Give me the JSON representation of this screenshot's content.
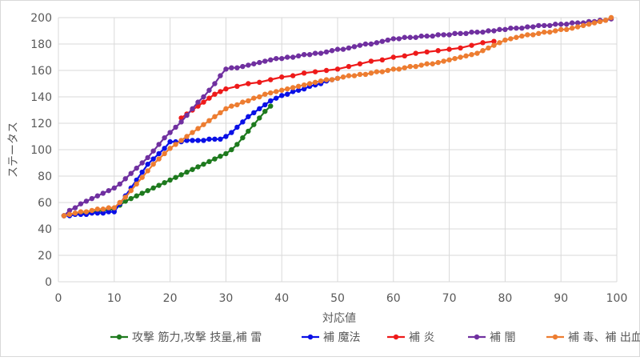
{
  "chart_data": {
    "type": "line",
    "title": "",
    "xlabel": "対応値",
    "ylabel": "ステータス",
    "xlim": [
      0,
      100
    ],
    "ylim": [
      0,
      200
    ],
    "xticks": [
      0,
      10,
      20,
      30,
      40,
      50,
      60,
      70,
      80,
      90,
      100
    ],
    "yticks": [
      0,
      20,
      40,
      60,
      80,
      100,
      120,
      140,
      160,
      180,
      200
    ],
    "grid": true,
    "legend_position": "bottom",
    "series": [
      {
        "name": "攻撃 筋力,攻撃 技量,補 雷",
        "color": "#1e7a1e",
        "x": [
          1,
          10,
          11,
          12,
          13,
          14,
          15,
          16,
          17,
          18,
          19,
          20,
          21,
          22,
          23,
          24,
          25,
          26,
          27,
          28,
          29,
          30,
          31,
          32,
          33,
          34,
          35,
          36,
          37,
          38
        ],
        "y": [
          50,
          55,
          58,
          61,
          63,
          65,
          67,
          69,
          71,
          73,
          75,
          77,
          79,
          81,
          83,
          85,
          87,
          89,
          91,
          93,
          95,
          97,
          100,
          104,
          109,
          114,
          119,
          124,
          129,
          133
        ]
      },
      {
        "name": "補 魔法",
        "color": "#0a10e6",
        "x": [
          1,
          2,
          3,
          4,
          5,
          6,
          7,
          8,
          9,
          10,
          11,
          12,
          13,
          14,
          15,
          16,
          17,
          18,
          19,
          20,
          21,
          22,
          23,
          24,
          25,
          26,
          27,
          28,
          29,
          30,
          31,
          32,
          33,
          34,
          35,
          36,
          37,
          38,
          39,
          40,
          41,
          42,
          43,
          44,
          45,
          46,
          47,
          48,
          49,
          50
        ],
        "y": [
          50,
          50,
          51,
          51,
          51,
          52,
          52,
          52,
          53,
          53,
          59,
          65,
          71,
          77,
          83,
          89,
          93,
          97,
          101,
          106,
          106,
          106,
          107,
          107,
          107,
          107,
          108,
          108,
          108,
          110,
          113,
          117,
          121,
          125,
          128,
          131,
          134,
          137,
          139,
          141,
          142,
          144,
          145,
          146,
          148,
          149,
          150,
          152,
          153,
          154
        ]
      },
      {
        "name": "補 炎",
        "color": "#ee1a1a",
        "x": [
          22,
          23,
          24,
          25,
          26,
          27,
          28,
          29,
          30,
          32,
          34,
          36,
          38,
          40,
          42,
          44,
          46,
          48,
          50,
          52,
          54,
          56,
          58,
          60,
          62,
          64,
          66,
          68,
          70,
          72,
          74,
          76,
          78
        ],
        "y": [
          124,
          127,
          130,
          133,
          136,
          139,
          142,
          144,
          146,
          148,
          150,
          151,
          153,
          155,
          156,
          158,
          159,
          160,
          161,
          163,
          165,
          167,
          168,
          170,
          171,
          173,
          174,
          175,
          176,
          177,
          179,
          181,
          182
        ]
      },
      {
        "name": "補 闇",
        "color": "#7030a0",
        "x": [
          1,
          2,
          3,
          4,
          5,
          6,
          7,
          8,
          9,
          10,
          11,
          12,
          13,
          14,
          15,
          16,
          17,
          18,
          19,
          20,
          21,
          22,
          23,
          24,
          25,
          26,
          27,
          28,
          29,
          30,
          31,
          32,
          33,
          34,
          35,
          36,
          37,
          38,
          39,
          40,
          41,
          42,
          43,
          44,
          45,
          46,
          47,
          48,
          49,
          50,
          51,
          52,
          53,
          54,
          55,
          56,
          57,
          58,
          59,
          60,
          61,
          62,
          63,
          64,
          65,
          66,
          67,
          68,
          69,
          70,
          71,
          72,
          73,
          74,
          75,
          76,
          77,
          78,
          79,
          80,
          81,
          82,
          83,
          84,
          85,
          86,
          87,
          88,
          89,
          90,
          91,
          92,
          93,
          94,
          95,
          96,
          97,
          98,
          99
        ],
        "y": [
          50,
          54,
          56,
          59,
          61,
          63,
          65,
          67,
          69,
          71,
          74,
          78,
          82,
          86,
          90,
          94,
          99,
          104,
          109,
          113,
          117,
          121,
          126,
          131,
          136,
          140,
          145,
          150,
          156,
          161,
          162,
          162,
          163,
          164,
          165,
          166,
          167,
          168,
          169,
          169,
          170,
          170,
          171,
          172,
          172,
          173,
          173,
          174,
          175,
          176,
          176,
          177,
          178,
          179,
          180,
          180,
          181,
          182,
          183,
          184,
          184,
          185,
          185,
          185,
          186,
          186,
          186,
          187,
          187,
          187,
          188,
          188,
          188,
          189,
          189,
          189,
          190,
          190,
          191,
          191,
          192,
          192,
          192,
          193,
          193,
          194,
          194,
          194,
          195,
          195,
          195,
          196,
          196,
          196,
          197,
          197,
          198,
          198,
          199
        ]
      },
      {
        "name": "補 毒、補 出血",
        "color": "#ed7d31",
        "x": [
          1,
          2,
          3,
          4,
          5,
          6,
          7,
          8,
          9,
          10,
          11,
          12,
          13,
          14,
          15,
          16,
          17,
          18,
          19,
          20,
          21,
          22,
          23,
          24,
          25,
          26,
          27,
          28,
          29,
          30,
          31,
          32,
          33,
          34,
          35,
          36,
          37,
          38,
          39,
          40,
          41,
          42,
          43,
          44,
          45,
          46,
          47,
          48,
          49,
          50,
          51,
          52,
          53,
          54,
          55,
          56,
          57,
          58,
          59,
          60,
          61,
          62,
          63,
          64,
          65,
          66,
          67,
          68,
          69,
          70,
          71,
          72,
          73,
          74,
          75,
          76,
          77,
          78,
          79,
          80,
          81,
          82,
          83,
          84,
          85,
          86,
          87,
          88,
          89,
          90,
          91,
          92,
          93,
          94,
          95,
          96,
          97,
          98,
          99
        ],
        "y": [
          50,
          51,
          52,
          53,
          53,
          54,
          55,
          55,
          56,
          56,
          60,
          64,
          69,
          74,
          79,
          84,
          89,
          93,
          97,
          101,
          104,
          107,
          110,
          113,
          116,
          119,
          122,
          125,
          128,
          131,
          133,
          134,
          136,
          137,
          139,
          140,
          142,
          143,
          144,
          145,
          146,
          147,
          148,
          149,
          150,
          151,
          152,
          153,
          153,
          154,
          155,
          156,
          156,
          157,
          157,
          158,
          159,
          159,
          160,
          161,
          161,
          162,
          163,
          163,
          164,
          165,
          165,
          166,
          167,
          168,
          169,
          170,
          171,
          172,
          173,
          175,
          177,
          179,
          181,
          183,
          184,
          185,
          186,
          187,
          187,
          188,
          189,
          189,
          190,
          191,
          191,
          192,
          193,
          194,
          195,
          196,
          197,
          198,
          200
        ]
      }
    ]
  }
}
